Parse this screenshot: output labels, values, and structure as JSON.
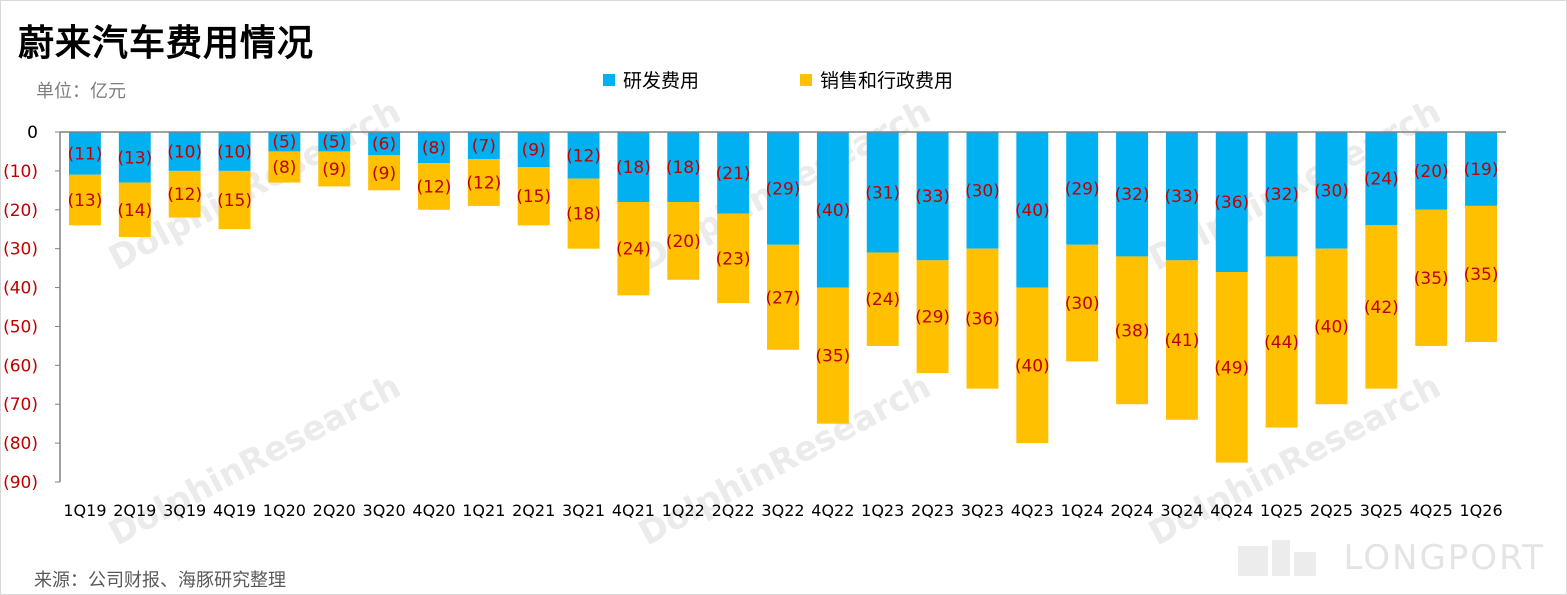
{
  "header": {
    "title": "蔚来汽车费用情况",
    "unit": "单位：亿元"
  },
  "footer": {
    "source": "来源：公司财报、海豚研究整理",
    "brand": "LONGPORT"
  },
  "watermark_text": "DolphinResearch",
  "colors": {
    "rd": "#00b0f0",
    "sga": "#ffc000",
    "label": "#c00000",
    "axis": "#808080",
    "ytick": "#c00000"
  },
  "chart_data": {
    "type": "bar",
    "stacked": true,
    "categories": [
      "1Q19",
      "2Q19",
      "3Q19",
      "4Q19",
      "1Q20",
      "2Q20",
      "3Q20",
      "4Q20",
      "1Q21",
      "2Q21",
      "3Q21",
      "4Q21",
      "1Q22",
      "2Q22",
      "3Q22",
      "4Q22",
      "1Q23",
      "2Q23",
      "3Q23",
      "4Q23",
      "1Q24",
      "2Q24",
      "3Q24",
      "4Q24",
      "1Q25",
      "2Q25",
      "3Q25",
      "4Q25",
      "1Q26"
    ],
    "series": [
      {
        "name": "研发费用",
        "color": "#00b0f0",
        "values": [
          -11,
          -13,
          -10,
          -10,
          -5,
          -5,
          -6,
          -8,
          -7,
          -9,
          -12,
          -18,
          -18,
          -21,
          -29,
          -40,
          -31,
          -33,
          -30,
          -40,
          -29,
          -32,
          -33,
          -36,
          -32,
          -30,
          -24,
          -20,
          -19
        ],
        "labels": [
          "(11)",
          "(13)",
          "(10)",
          "(10)",
          "(5)",
          "(5)",
          "(6)",
          "(8)",
          "(7)",
          "(9)",
          "(12)",
          "(18)",
          "(18)",
          "(21)",
          "(29)",
          "(40)",
          "(31)",
          "(33)",
          "(30)",
          "(40)",
          "(29)",
          "(32)",
          "(33)",
          "(36)",
          "(32)",
          "(30)",
          "(24)",
          "(20)",
          "(19)"
        ]
      },
      {
        "name": "销售和行政费用",
        "color": "#ffc000",
        "values": [
          -13,
          -14,
          -12,
          -15,
          -8,
          -9,
          -9,
          -12,
          -12,
          -15,
          -18,
          -24,
          -20,
          -23,
          -27,
          -35,
          -24,
          -29,
          -36,
          -40,
          -30,
          -38,
          -41,
          -49,
          -44,
          -40,
          -42,
          -35,
          -35
        ],
        "labels": [
          "(13)",
          "(14)",
          "(12)",
          "(15)",
          "(8)",
          "(9)",
          "(9)",
          "(12)",
          "(12)",
          "(15)",
          "(18)",
          "(24)",
          "(20)",
          "(23)",
          "(27)",
          "(35)",
          "(24)",
          "(29)",
          "(36)",
          "(40)",
          "(30)",
          "(38)",
          "(41)",
          "(49)",
          "(44)",
          "(40)",
          "(42)",
          "(35)",
          "(35)"
        ]
      }
    ],
    "ylim": [
      -90,
      0
    ],
    "yticks": [
      0,
      -10,
      -20,
      -30,
      -40,
      -50,
      -60,
      -70,
      -80,
      -90
    ],
    "ytick_labels": [
      "0",
      "(10)",
      "(20)",
      "(30)",
      "(40)",
      "(50)",
      "(60)",
      "(70)",
      "(80)",
      "(90)"
    ],
    "grid": false,
    "legend_position": "top-center"
  }
}
